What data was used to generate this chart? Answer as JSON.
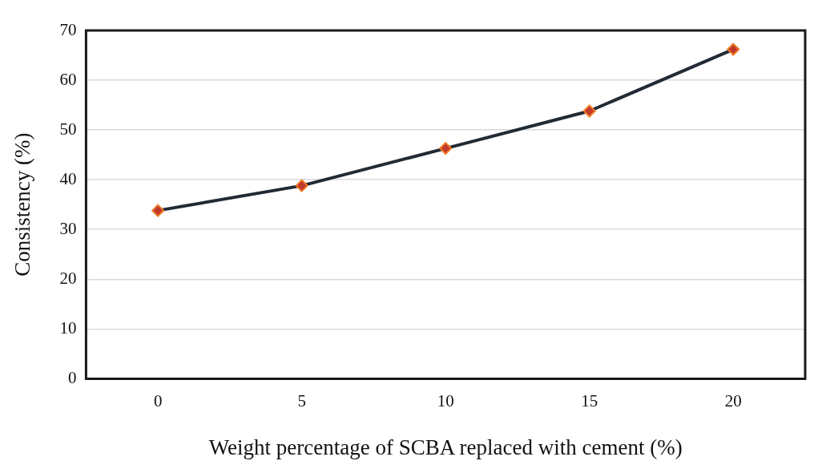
{
  "chart_data": {
    "type": "line",
    "xlabel": "Weight percentage of SCBA replaced with cement (%)",
    "ylabel": "Consistency (%)",
    "categories": [
      "0",
      "5",
      "10",
      "15",
      "20"
    ],
    "series": [
      {
        "color": "#222a35",
        "values": [
          33.8,
          38.8,
          46.3,
          53.8,
          66.2
        ]
      }
    ],
    "ylim": [
      0,
      70
    ],
    "yticks": [
      0,
      10,
      20,
      30,
      40,
      50,
      60,
      70
    ],
    "grid": "y",
    "legend": false,
    "marker": "diamond",
    "line_style": "solid"
  }
}
